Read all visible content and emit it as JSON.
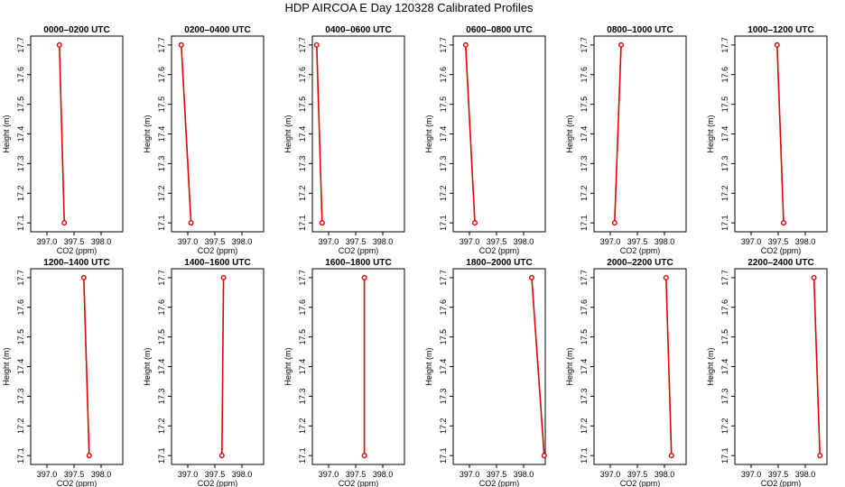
{
  "figure": {
    "title": "HDP AIRCOA E  Day 120328  Calibrated Profiles"
  },
  "chart_data": [
    {
      "type": "line",
      "title": "0000–0200 UTC",
      "xlabel": "CO2 (ppm)",
      "ylabel": "Height (m)",
      "xlim": [
        396.7,
        398.4
      ],
      "ylim": [
        17.07,
        17.73
      ],
      "xticks": [
        "397.0",
        "397.5",
        "398.0"
      ],
      "yticks": [
        "17.1",
        "17.2",
        "17.3",
        "17.4",
        "17.5",
        "17.6",
        "17.7"
      ],
      "series": [
        {
          "x": [
            397.23,
            397.32
          ],
          "y": [
            17.7,
            17.1
          ]
        }
      ],
      "color": "#e00000",
      "marker": "open-circle"
    },
    {
      "type": "line",
      "title": "0200–0400 UTC",
      "xlabel": "CO2 (ppm)",
      "ylabel": "Height (m)",
      "xlim": [
        396.7,
        398.4
      ],
      "ylim": [
        17.07,
        17.73
      ],
      "xticks": [
        "397.0",
        "397.5",
        "398.0"
      ],
      "yticks": [
        "17.1",
        "17.2",
        "17.3",
        "17.4",
        "17.5",
        "17.6",
        "17.7"
      ],
      "series": [
        {
          "x": [
            396.88,
            397.06
          ],
          "y": [
            17.7,
            17.1
          ]
        }
      ],
      "color": "#e00000",
      "marker": "open-circle"
    },
    {
      "type": "line",
      "title": "0400–0600 UTC",
      "xlabel": "CO2 (ppm)",
      "ylabel": "Height (m)",
      "xlim": [
        396.7,
        398.4
      ],
      "ylim": [
        17.07,
        17.73
      ],
      "xticks": [
        "397.0",
        "397.5",
        "398.0"
      ],
      "yticks": [
        "17.1",
        "17.2",
        "17.3",
        "17.4",
        "17.5",
        "17.6",
        "17.7"
      ],
      "series": [
        {
          "x": [
            396.78,
            396.88
          ],
          "y": [
            17.7,
            17.1
          ]
        }
      ],
      "color": "#e00000",
      "marker": "open-circle"
    },
    {
      "type": "line",
      "title": "0600–0800 UTC",
      "xlabel": "CO2 (ppm)",
      "ylabel": "Height (m)",
      "xlim": [
        396.7,
        398.4
      ],
      "ylim": [
        17.07,
        17.73
      ],
      "xticks": [
        "397.0",
        "397.5",
        "398.0"
      ],
      "yticks": [
        "17.1",
        "17.2",
        "17.3",
        "17.4",
        "17.5",
        "17.6",
        "17.7"
      ],
      "series": [
        {
          "x": [
            396.93,
            397.1
          ],
          "y": [
            17.7,
            17.1
          ]
        }
      ],
      "color": "#e00000",
      "marker": "open-circle"
    },
    {
      "type": "line",
      "title": "0800–1000 UTC",
      "xlabel": "CO2 (ppm)",
      "ylabel": "Height (m)",
      "xlim": [
        396.7,
        398.4
      ],
      "ylim": [
        17.07,
        17.73
      ],
      "xticks": [
        "397.0",
        "397.5",
        "398.0"
      ],
      "yticks": [
        "17.1",
        "17.2",
        "17.3",
        "17.4",
        "17.5",
        "17.6",
        "17.7"
      ],
      "series": [
        {
          "x": [
            397.2,
            397.08
          ],
          "y": [
            17.7,
            17.1
          ]
        }
      ],
      "color": "#e00000",
      "marker": "open-circle"
    },
    {
      "type": "line",
      "title": "1000–1200 UTC",
      "xlabel": "CO2 (ppm)",
      "ylabel": "Height (m)",
      "xlim": [
        396.7,
        398.4
      ],
      "ylim": [
        17.07,
        17.73
      ],
      "xticks": [
        "397.0",
        "397.5",
        "398.0"
      ],
      "yticks": [
        "17.1",
        "17.2",
        "17.3",
        "17.4",
        "17.5",
        "17.6",
        "17.7"
      ],
      "series": [
        {
          "x": [
            397.48,
            397.6
          ],
          "y": [
            17.7,
            17.1
          ]
        }
      ],
      "color": "#e00000",
      "marker": "open-circle"
    },
    {
      "type": "line",
      "title": "1200–1400 UTC",
      "xlabel": "CO2 (ppm)",
      "ylabel": "Height (m)",
      "xlim": [
        396.7,
        398.4
      ],
      "ylim": [
        17.07,
        17.73
      ],
      "xticks": [
        "397.0",
        "397.5",
        "398.0"
      ],
      "yticks": [
        "17.1",
        "17.2",
        "17.3",
        "17.4",
        "17.5",
        "17.6",
        "17.7"
      ],
      "series": [
        {
          "x": [
            397.68,
            397.78
          ],
          "y": [
            17.7,
            17.1
          ]
        }
      ],
      "color": "#e00000",
      "marker": "open-circle"
    },
    {
      "type": "line",
      "title": "1400–1600 UTC",
      "xlabel": "CO2 (ppm)",
      "ylabel": "Height (m)",
      "xlim": [
        396.7,
        398.4
      ],
      "ylim": [
        17.07,
        17.73
      ],
      "xticks": [
        "397.0",
        "397.5",
        "398.0"
      ],
      "yticks": [
        "17.1",
        "17.2",
        "17.3",
        "17.4",
        "17.5",
        "17.6",
        "17.7"
      ],
      "series": [
        {
          "x": [
            397.66,
            397.63
          ],
          "y": [
            17.7,
            17.1
          ]
        }
      ],
      "color": "#e00000",
      "marker": "open-circle"
    },
    {
      "type": "line",
      "title": "1600–1800 UTC",
      "xlabel": "CO2 (ppm)",
      "ylabel": "Height (m)",
      "xlim": [
        396.7,
        398.4
      ],
      "ylim": [
        17.07,
        17.73
      ],
      "xticks": [
        "397.0",
        "397.5",
        "398.0"
      ],
      "yticks": [
        "17.1",
        "17.2",
        "17.3",
        "17.4",
        "17.5",
        "17.6",
        "17.7"
      ],
      "series": [
        {
          "x": [
            397.66,
            397.66
          ],
          "y": [
            17.7,
            17.1
          ]
        }
      ],
      "color": "#e00000",
      "marker": "open-circle"
    },
    {
      "type": "line",
      "title": "1800–2000 UTC",
      "xlabel": "CO2 (ppm)",
      "ylabel": "Height (m)",
      "xlim": [
        396.7,
        398.4
      ],
      "ylim": [
        17.07,
        17.73
      ],
      "xticks": [
        "397.0",
        "397.5",
        "398.0"
      ],
      "yticks": [
        "17.1",
        "17.2",
        "17.3",
        "17.4",
        "17.5",
        "17.6",
        "17.7"
      ],
      "series": [
        {
          "x": [
            398.15,
            398.38
          ],
          "y": [
            17.7,
            17.1
          ]
        }
      ],
      "color": "#e00000",
      "marker": "open-circle"
    },
    {
      "type": "line",
      "title": "2000–2200 UTC",
      "xlabel": "CO2 (ppm)",
      "ylabel": "Height (m)",
      "xlim": [
        396.7,
        398.4
      ],
      "ylim": [
        17.07,
        17.73
      ],
      "xticks": [
        "397.0",
        "397.5",
        "398.0"
      ],
      "yticks": [
        "17.1",
        "17.2",
        "17.3",
        "17.4",
        "17.5",
        "17.6",
        "17.7"
      ],
      "series": [
        {
          "x": [
            398.03,
            398.13
          ],
          "y": [
            17.7,
            17.1
          ]
        }
      ],
      "color": "#e00000",
      "marker": "open-circle"
    },
    {
      "type": "line",
      "title": "2200–2400 UTC",
      "xlabel": "CO2 (ppm)",
      "ylabel": "Height (m)",
      "xlim": [
        396.7,
        398.4
      ],
      "ylim": [
        17.07,
        17.73
      ],
      "xticks": [
        "397.0",
        "397.5",
        "398.0"
      ],
      "yticks": [
        "17.1",
        "17.2",
        "17.3",
        "17.4",
        "17.5",
        "17.6",
        "17.7"
      ],
      "series": [
        {
          "x": [
            398.16,
            398.27
          ],
          "y": [
            17.7,
            17.1
          ]
        }
      ],
      "color": "#e00000",
      "marker": "open-circle"
    }
  ]
}
